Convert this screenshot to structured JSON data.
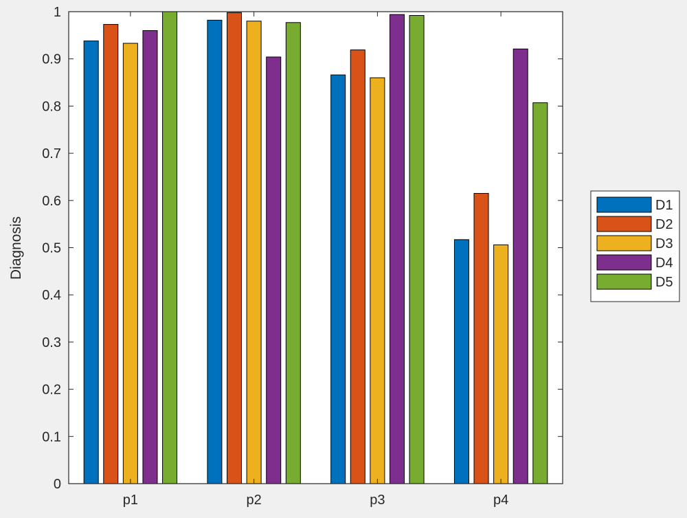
{
  "chart_data": {
    "type": "bar",
    "categories": [
      "p1",
      "p2",
      "p3",
      "p4"
    ],
    "series": [
      {
        "name": "D1",
        "color": "#0072BD",
        "values": [
          0.938,
          0.982,
          0.866,
          0.517
        ]
      },
      {
        "name": "D2",
        "color": "#D95319",
        "values": [
          0.973,
          0.998,
          0.919,
          0.615
        ]
      },
      {
        "name": "D3",
        "color": "#EDB120",
        "values": [
          0.933,
          0.98,
          0.86,
          0.506
        ]
      },
      {
        "name": "D4",
        "color": "#7E2F8E",
        "values": [
          0.96,
          0.904,
          0.994,
          0.921
        ]
      },
      {
        "name": "D5",
        "color": "#77AC30",
        "values": [
          1.0,
          0.977,
          0.992,
          0.807
        ]
      }
    ],
    "ylabel": "Diagnosis",
    "xlabel": "",
    "ylim": [
      0,
      1
    ],
    "yticks": [
      "0",
      "0.1",
      "0.2",
      "0.3",
      "0.4",
      "0.5",
      "0.6",
      "0.7",
      "0.8",
      "0.9",
      "1"
    ],
    "grid": false,
    "legend_position": "outside-right"
  }
}
